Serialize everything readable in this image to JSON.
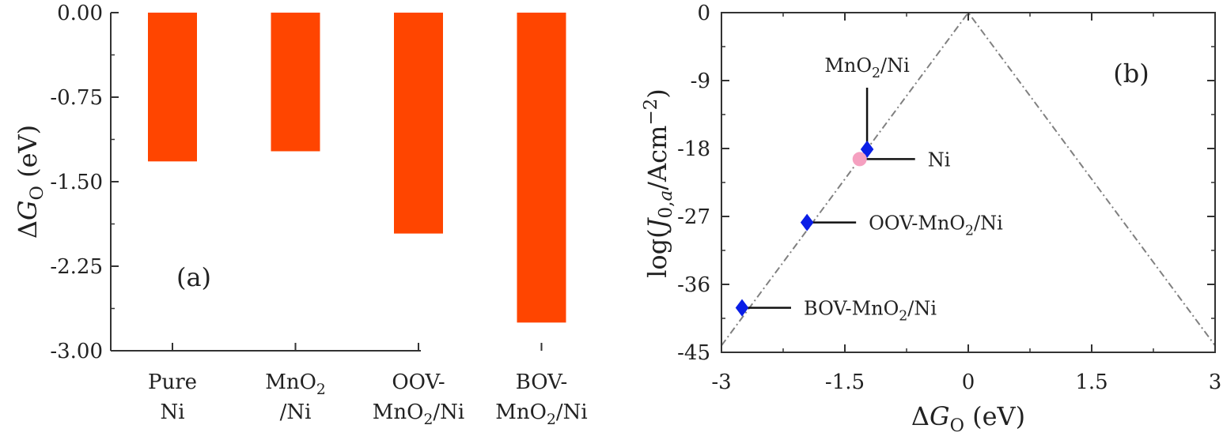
{
  "chart_data": [
    {
      "type": "bar",
      "panel_label": "(a)",
      "ylabel": "ΔG",
      "ylabel_sub": "O",
      "ylabel_unit": " (eV)",
      "ylim": [
        -3.0,
        0.0
      ],
      "yticks": [
        "0.00",
        "-0.75",
        "-1.50",
        "-2.25",
        "-3.00"
      ],
      "ytick_values": [
        0.0,
        -0.75,
        -1.5,
        -2.25,
        -3.0
      ],
      "categories": [
        {
          "lines": [
            [
              {
                "t": "Pure"
              }
            ],
            [
              {
                "t": "Ni"
              }
            ]
          ]
        },
        {
          "lines": [
            [
              {
                "t": "MnO"
              },
              {
                "t": "2",
                "sub": true
              }
            ],
            [
              {
                "t": "/Ni"
              }
            ]
          ]
        },
        {
          "lines": [
            [
              {
                "t": "OOV-"
              }
            ],
            [
              {
                "t": "MnO"
              },
              {
                "t": "2",
                "sub": true
              },
              {
                "t": "/Ni"
              }
            ]
          ]
        },
        {
          "lines": [
            [
              {
                "t": "BOV-"
              }
            ],
            [
              {
                "t": "MnO"
              },
              {
                "t": "2",
                "sub": true
              },
              {
                "t": "/Ni"
              }
            ]
          ]
        }
      ],
      "values": [
        -1.32,
        -1.23,
        -1.96,
        -2.75
      ],
      "bar_color": "#ff4500"
    },
    {
      "type": "scatter",
      "panel_label": "(b)",
      "xlabel": "ΔG",
      "xlabel_sub": "O",
      "xlabel_unit": " (eV)",
      "ylabel_parts": [
        {
          "t": "log("
        },
        {
          "t": "J",
          "italic": true
        },
        {
          "t": "0,",
          "sub": true
        },
        {
          "t": "a",
          "sub": true,
          "italic": true
        },
        {
          "t": "/Acm"
        },
        {
          "t": "−2",
          "sup": true
        },
        {
          "t": ")"
        }
      ],
      "xlim": [
        -3,
        3
      ],
      "ylim": [
        -45,
        0
      ],
      "xticks": [
        "-3",
        "-1.5",
        "0",
        "1.5",
        "3"
      ],
      "xtick_values": [
        -3,
        -1.5,
        0,
        1.5,
        3
      ],
      "yticks": [
        "0",
        "-9",
        "-18",
        "-27",
        "-36",
        "-45"
      ],
      "ytick_values": [
        0,
        -9,
        -18,
        -27,
        -36,
        -45
      ],
      "volcano_line": {
        "peak": [
          0,
          0
        ],
        "slope": 14.7,
        "color": "#808080",
        "style": "dash-dot"
      },
      "points": [
        {
          "label": [
            {
              "t": "MnO"
            },
            {
              "t": "2",
              "sub": true
            },
            {
              "t": "/Ni"
            }
          ],
          "x": -1.23,
          "y": -18.1,
          "marker": "diamond",
          "color": "#0a1ee6",
          "annotation": "above"
        },
        {
          "label": [
            {
              "t": "Ni"
            }
          ],
          "x": -1.32,
          "y": -19.4,
          "marker": "circle",
          "color": "#f5a0c0",
          "annotation": "right"
        },
        {
          "label": [
            {
              "t": "OOV-MnO"
            },
            {
              "t": "2",
              "sub": true
            },
            {
              "t": "/Ni"
            }
          ],
          "x": -1.96,
          "y": -27.8,
          "marker": "diamond",
          "color": "#0a1ee6",
          "annotation": "right"
        },
        {
          "label": [
            {
              "t": "BOV-MnO"
            },
            {
              "t": "2",
              "sub": true
            },
            {
              "t": "/Ni"
            }
          ],
          "x": -2.75,
          "y": -39.1,
          "marker": "diamond",
          "color": "#0a1ee6",
          "annotation": "right"
        }
      ]
    }
  ]
}
